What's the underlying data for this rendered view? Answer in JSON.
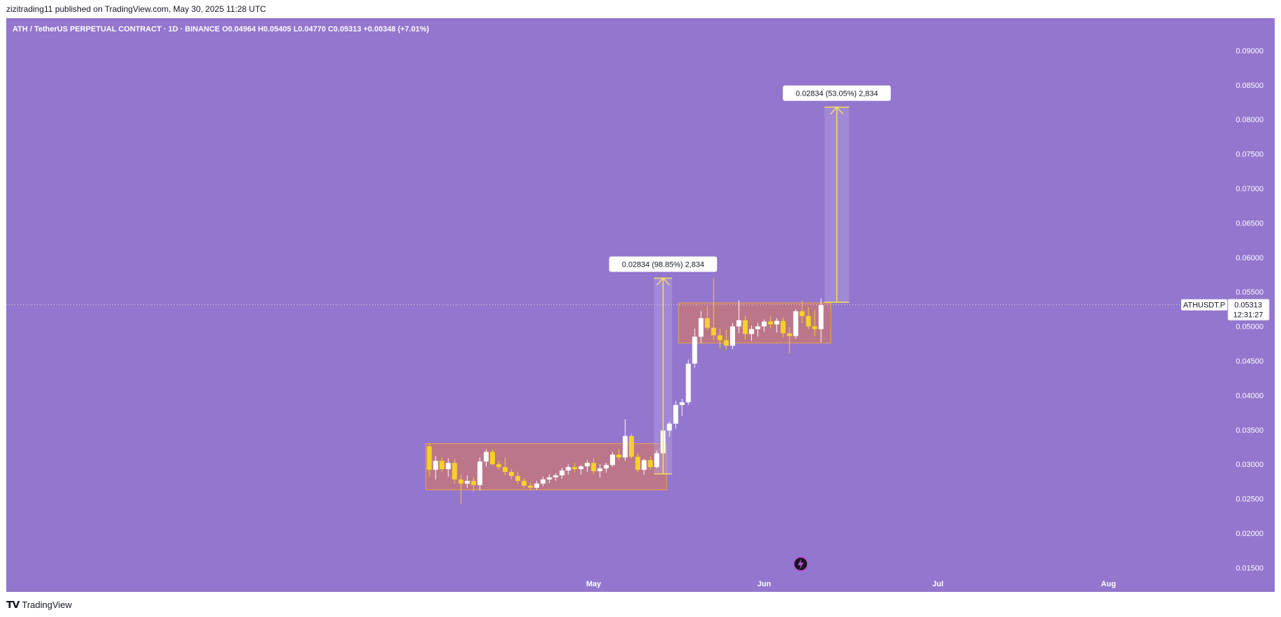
{
  "header": {
    "published_line": "zizitrading11 published on TradingView.com, May 30, 2025 11:28 UTC"
  },
  "legend": {
    "text": "ATH / TetherUS PERPETUAL CONTRACT · 1D · BINANCE  O0.04964  H0.05405  L0.04770  C0.05313  +0.00348 (+7.01%)"
  },
  "footer": {
    "brand": "TradingView",
    "logo_icon": "tradingview-logo-icon"
  },
  "colors": {
    "background": "#9376cd",
    "up_candle": "#ffffff",
    "down_candle": "#f5d12a",
    "zone_fill": "#c2777c",
    "zone_border": "#f2a24a",
    "measure_line": "#f7e15a",
    "measure_fill": "#b3a2e0"
  },
  "chart_data": {
    "type": "candlestick",
    "symbol": "ATHUSDT.P",
    "timeframe": "1D",
    "exchange": "BINANCE",
    "ylim": [
      0.0115,
      0.0947
    ],
    "y_ticks": [
      "0.09000",
      "0.08500",
      "0.08000",
      "0.07500",
      "0.07000",
      "0.06500",
      "0.06000",
      "0.05500",
      "0.05000",
      "0.04500",
      "0.04000",
      "0.03500",
      "0.03000",
      "0.02500",
      "0.02000",
      "0.01500"
    ],
    "x_ticks": [
      "May",
      "Jun",
      "Jul",
      "Aug"
    ],
    "last_price": "0.05313",
    "countdown": "12:31:27",
    "candles": [
      {
        "o": 0.0326,
        "h": 0.033,
        "l": 0.0282,
        "c": 0.0292
      },
      {
        "o": 0.0292,
        "h": 0.0312,
        "l": 0.0278,
        "c": 0.0305
      },
      {
        "o": 0.0305,
        "h": 0.031,
        "l": 0.0289,
        "c": 0.0293
      },
      {
        "o": 0.0293,
        "h": 0.0309,
        "l": 0.0282,
        "c": 0.0302
      },
      {
        "o": 0.0302,
        "h": 0.0308,
        "l": 0.0272,
        "c": 0.0278
      },
      {
        "o": 0.0278,
        "h": 0.0285,
        "l": 0.0242,
        "c": 0.0272
      },
      {
        "o": 0.0272,
        "h": 0.0284,
        "l": 0.0266,
        "c": 0.0276
      },
      {
        "o": 0.0276,
        "h": 0.0281,
        "l": 0.026,
        "c": 0.027
      },
      {
        "o": 0.027,
        "h": 0.031,
        "l": 0.0262,
        "c": 0.0304
      },
      {
        "o": 0.0304,
        "h": 0.0322,
        "l": 0.0297,
        "c": 0.0318
      },
      {
        "o": 0.0318,
        "h": 0.0321,
        "l": 0.0299,
        "c": 0.03
      },
      {
        "o": 0.03,
        "h": 0.0305,
        "l": 0.0292,
        "c": 0.0296
      },
      {
        "o": 0.0296,
        "h": 0.031,
        "l": 0.0284,
        "c": 0.0289
      },
      {
        "o": 0.0289,
        "h": 0.0293,
        "l": 0.0278,
        "c": 0.0283
      },
      {
        "o": 0.0283,
        "h": 0.0289,
        "l": 0.0271,
        "c": 0.0276
      },
      {
        "o": 0.0276,
        "h": 0.028,
        "l": 0.0266,
        "c": 0.0269
      },
      {
        "o": 0.0269,
        "h": 0.0274,
        "l": 0.0262,
        "c": 0.0266
      },
      {
        "o": 0.0266,
        "h": 0.0276,
        "l": 0.0263,
        "c": 0.0272
      },
      {
        "o": 0.0272,
        "h": 0.0282,
        "l": 0.0268,
        "c": 0.0278
      },
      {
        "o": 0.0278,
        "h": 0.0285,
        "l": 0.0273,
        "c": 0.0281
      },
      {
        "o": 0.0281,
        "h": 0.0287,
        "l": 0.0276,
        "c": 0.0284
      },
      {
        "o": 0.0284,
        "h": 0.0295,
        "l": 0.0279,
        "c": 0.0291
      },
      {
        "o": 0.0291,
        "h": 0.03,
        "l": 0.0285,
        "c": 0.0296
      },
      {
        "o": 0.0296,
        "h": 0.0302,
        "l": 0.0288,
        "c": 0.0293
      },
      {
        "o": 0.0293,
        "h": 0.0299,
        "l": 0.0285,
        "c": 0.0297
      },
      {
        "o": 0.0297,
        "h": 0.0306,
        "l": 0.0289,
        "c": 0.0302
      },
      {
        "o": 0.0302,
        "h": 0.0309,
        "l": 0.0286,
        "c": 0.029
      },
      {
        "o": 0.029,
        "h": 0.03,
        "l": 0.0281,
        "c": 0.0294
      },
      {
        "o": 0.0294,
        "h": 0.0302,
        "l": 0.0288,
        "c": 0.0299
      },
      {
        "o": 0.0299,
        "h": 0.0318,
        "l": 0.0296,
        "c": 0.0314
      },
      {
        "o": 0.0314,
        "h": 0.0322,
        "l": 0.0306,
        "c": 0.031
      },
      {
        "o": 0.031,
        "h": 0.0365,
        "l": 0.0305,
        "c": 0.0341
      },
      {
        "o": 0.0341,
        "h": 0.0345,
        "l": 0.0308,
        "c": 0.0311
      },
      {
        "o": 0.0311,
        "h": 0.0316,
        "l": 0.0288,
        "c": 0.0292
      },
      {
        "o": 0.0292,
        "h": 0.0308,
        "l": 0.0285,
        "c": 0.0306
      },
      {
        "o": 0.0306,
        "h": 0.0311,
        "l": 0.0292,
        "c": 0.0296
      },
      {
        "o": 0.0296,
        "h": 0.032,
        "l": 0.0294,
        "c": 0.0316
      },
      {
        "o": 0.0316,
        "h": 0.0362,
        "l": 0.0312,
        "c": 0.0349
      },
      {
        "o": 0.0349,
        "h": 0.0362,
        "l": 0.034,
        "c": 0.0359
      },
      {
        "o": 0.0359,
        "h": 0.0392,
        "l": 0.0352,
        "c": 0.0386
      },
      {
        "o": 0.0386,
        "h": 0.0395,
        "l": 0.037,
        "c": 0.039
      },
      {
        "o": 0.039,
        "h": 0.0452,
        "l": 0.0386,
        "c": 0.0446
      },
      {
        "o": 0.0446,
        "h": 0.0497,
        "l": 0.044,
        "c": 0.0485
      },
      {
        "o": 0.0485,
        "h": 0.0522,
        "l": 0.0476,
        "c": 0.0512
      },
      {
        "o": 0.0512,
        "h": 0.053,
        "l": 0.0495,
        "c": 0.0498
      },
      {
        "o": 0.0498,
        "h": 0.057,
        "l": 0.048,
        "c": 0.0487
      },
      {
        "o": 0.0487,
        "h": 0.0497,
        "l": 0.0468,
        "c": 0.048
      },
      {
        "o": 0.048,
        "h": 0.0495,
        "l": 0.0466,
        "c": 0.0472
      },
      {
        "o": 0.0472,
        "h": 0.0505,
        "l": 0.0467,
        "c": 0.05
      },
      {
        "o": 0.05,
        "h": 0.0538,
        "l": 0.049,
        "c": 0.0509
      },
      {
        "o": 0.0509,
        "h": 0.0515,
        "l": 0.0481,
        "c": 0.0489
      },
      {
        "o": 0.0489,
        "h": 0.0501,
        "l": 0.0479,
        "c": 0.0496
      },
      {
        "o": 0.0496,
        "h": 0.0505,
        "l": 0.0485,
        "c": 0.05
      },
      {
        "o": 0.05,
        "h": 0.051,
        "l": 0.0492,
        "c": 0.0507
      },
      {
        "o": 0.0507,
        "h": 0.0515,
        "l": 0.0498,
        "c": 0.0503
      },
      {
        "o": 0.0503,
        "h": 0.0512,
        "l": 0.0491,
        "c": 0.0508
      },
      {
        "o": 0.0508,
        "h": 0.0513,
        "l": 0.0484,
        "c": 0.049
      },
      {
        "o": 0.049,
        "h": 0.0499,
        "l": 0.0461,
        "c": 0.0486
      },
      {
        "o": 0.0486,
        "h": 0.0525,
        "l": 0.0482,
        "c": 0.0522
      },
      {
        "o": 0.0522,
        "h": 0.0538,
        "l": 0.0504,
        "c": 0.0515
      },
      {
        "o": 0.0515,
        "h": 0.0528,
        "l": 0.0496,
        "c": 0.05
      },
      {
        "o": 0.05,
        "h": 0.0524,
        "l": 0.0486,
        "c": 0.0496
      },
      {
        "o": 0.0496,
        "h": 0.0541,
        "l": 0.0477,
        "c": 0.0531
      }
    ],
    "zones": [
      {
        "start_index": 0,
        "end_index": 37,
        "top": 0.033,
        "bottom": 0.0263
      },
      {
        "start_index": 40,
        "end_index": 63,
        "top": 0.0534,
        "bottom": 0.0476
      }
    ],
    "measurements": [
      {
        "label": "0.02834 (98.85%) 2,834",
        "from": 0.0286,
        "to": 0.057,
        "start_index": 36,
        "end_index": 38
      },
      {
        "label": "0.02834 (53.05%) 2,834",
        "from": 0.0535,
        "to": 0.0818,
        "start_index": 63,
        "end_index": 66
      }
    ]
  }
}
